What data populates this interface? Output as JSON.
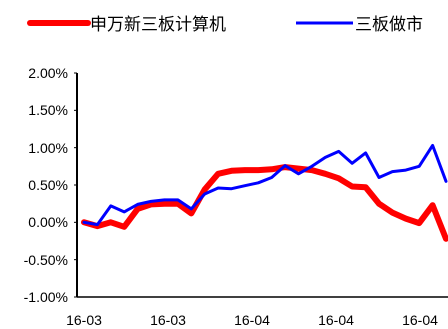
{
  "chart_data": {
    "type": "line",
    "title": "",
    "xlabel": "",
    "ylabel": "",
    "ylim": [
      -1.0,
      2.0
    ],
    "y_ticks": [
      "2.00%",
      "1.50%",
      "1.00%",
      "0.50%",
      "0.00%",
      "-0.50%",
      "-1.00%"
    ],
    "y_tick_values": [
      2.0,
      1.5,
      1.0,
      0.5,
      0.0,
      -0.5,
      -1.0
    ],
    "x_ticks": [
      "16-03",
      "16-03",
      "16-04",
      "16-04",
      "16-04"
    ],
    "grid": false,
    "legend_position": "top",
    "series": [
      {
        "name": "申万新三板计算机",
        "color": "#ff0000",
        "values": [
          0.0,
          -0.05,
          0.0,
          -0.06,
          0.18,
          0.24,
          0.25,
          0.25,
          0.12,
          0.44,
          0.65,
          0.69,
          0.7,
          0.7,
          0.71,
          0.74,
          0.72,
          0.7,
          0.65,
          0.59,
          0.48,
          0.47,
          0.25,
          0.13,
          0.05,
          -0.01,
          0.23,
          -0.22
        ]
      },
      {
        "name": "三板做市",
        "color": "#0000ff",
        "values": [
          0.0,
          -0.03,
          0.22,
          0.14,
          0.24,
          0.28,
          0.3,
          0.3,
          0.18,
          0.38,
          0.46,
          0.45,
          0.49,
          0.53,
          0.6,
          0.76,
          0.65,
          0.75,
          0.87,
          0.95,
          0.79,
          0.93,
          0.6,
          0.68,
          0.7,
          0.75,
          1.03,
          0.55
        ]
      }
    ]
  }
}
